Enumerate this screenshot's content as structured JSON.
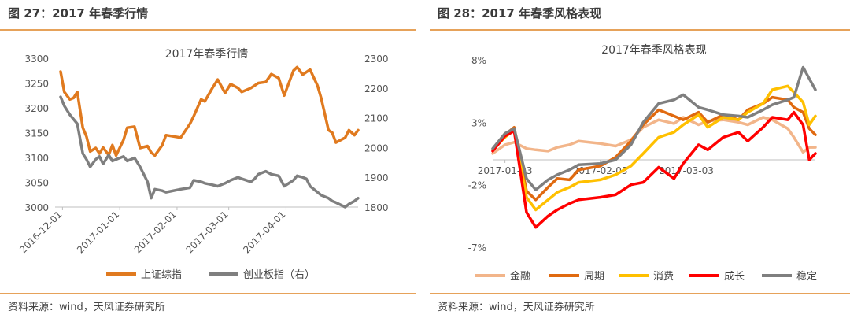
{
  "left_panel": {
    "figure_title": "图 27：2017 年春季行情",
    "source": "资料来源：wind，天风证券研究所",
    "chart_data": {
      "type": "line",
      "title": "2017年春季行情",
      "left_axis": {
        "ylim": [
          3000,
          3300
        ],
        "ticks": [
          "3300",
          "3250",
          "3200",
          "3150",
          "3100",
          "3050",
          "3000"
        ]
      },
      "right_axis": {
        "ylim": [
          1800,
          2300
        ],
        "ticks": [
          "2300",
          "2200",
          "2100",
          "2000",
          "1900",
          "1800"
        ]
      },
      "xlim": [
        "2016-11-27",
        "2017-05-10"
      ],
      "x_ticks": [
        "2016-12-01",
        "2017-01-01",
        "2017-02-01",
        "2017-03-01",
        "2017-04-01"
      ],
      "legend_position": "bottom",
      "series": [
        {
          "name": "上证综指",
          "axis": "left",
          "color": "#e07a1f",
          "x": [
            "2016-11-30",
            "2016-12-02",
            "2016-12-05",
            "2016-12-07",
            "2016-12-09",
            "2016-12-12",
            "2016-12-14",
            "2016-12-16",
            "2016-12-19",
            "2016-12-21",
            "2016-12-23",
            "2016-12-26",
            "2016-12-28",
            "2016-12-30",
            "2017-01-03",
            "2017-01-05",
            "2017-01-09",
            "2017-01-12",
            "2017-01-16",
            "2017-01-18",
            "2017-01-20",
            "2017-01-24",
            "2017-01-26",
            "2017-02-03",
            "2017-02-08",
            "2017-02-10",
            "2017-02-14",
            "2017-02-16",
            "2017-02-20",
            "2017-02-23",
            "2017-02-27",
            "2017-03-02",
            "2017-03-06",
            "2017-03-08",
            "2017-03-13",
            "2017-03-15",
            "2017-03-17",
            "2017-03-21",
            "2017-03-24",
            "2017-03-28",
            "2017-03-31",
            "2017-04-05",
            "2017-04-07",
            "2017-04-10",
            "2017-04-12",
            "2017-04-14",
            "2017-04-18",
            "2017-04-20",
            "2017-04-24",
            "2017-04-26",
            "2017-04-28",
            "2017-05-03",
            "2017-05-05",
            "2017-05-08",
            "2017-05-10"
          ],
          "values": [
            3273,
            3232,
            3217,
            3220,
            3232,
            3160,
            3142,
            3112,
            3119,
            3108,
            3120,
            3105,
            3125,
            3104,
            3135,
            3160,
            3162,
            3119,
            3123,
            3110,
            3104,
            3125,
            3145,
            3140,
            3168,
            3183,
            3217,
            3213,
            3239,
            3257,
            3230,
            3248,
            3240,
            3232,
            3240,
            3245,
            3250,
            3252,
            3268,
            3260,
            3225,
            3275,
            3282,
            3267,
            3272,
            3277,
            3245,
            3220,
            3155,
            3150,
            3130,
            3140,
            3155,
            3145,
            3155
          ]
        },
        {
          "name": "创业板指（右）",
          "axis": "right",
          "color": "#7f7f7f",
          "x": [
            "2016-11-30",
            "2016-12-02",
            "2016-12-05",
            "2016-12-07",
            "2016-12-09",
            "2016-12-12",
            "2016-12-14",
            "2016-12-16",
            "2016-12-19",
            "2016-12-21",
            "2016-12-23",
            "2016-12-26",
            "2016-12-28",
            "2016-12-30",
            "2017-01-03",
            "2017-01-05",
            "2017-01-09",
            "2017-01-12",
            "2017-01-16",
            "2017-01-18",
            "2017-01-20",
            "2017-01-24",
            "2017-01-26",
            "2017-02-03",
            "2017-02-08",
            "2017-02-10",
            "2017-02-14",
            "2017-02-16",
            "2017-02-20",
            "2017-02-23",
            "2017-02-27",
            "2017-03-02",
            "2017-03-06",
            "2017-03-08",
            "2017-03-13",
            "2017-03-15",
            "2017-03-17",
            "2017-03-21",
            "2017-03-24",
            "2017-03-28",
            "2017-03-31",
            "2017-04-05",
            "2017-04-07",
            "2017-04-10",
            "2017-04-12",
            "2017-04-14",
            "2017-04-18",
            "2017-04-20",
            "2017-04-24",
            "2017-04-26",
            "2017-04-28",
            "2017-05-03",
            "2017-05-05",
            "2017-05-08",
            "2017-05-10"
          ],
          "values": [
            2170,
            2140,
            2110,
            2095,
            2080,
            1980,
            1960,
            1935,
            1960,
            1970,
            1945,
            1975,
            1955,
            1960,
            1970,
            1955,
            1965,
            1935,
            1885,
            1830,
            1860,
            1855,
            1850,
            1860,
            1865,
            1890,
            1885,
            1880,
            1875,
            1870,
            1880,
            1890,
            1900,
            1895,
            1885,
            1895,
            1910,
            1920,
            1910,
            1905,
            1870,
            1890,
            1905,
            1900,
            1895,
            1870,
            1850,
            1840,
            1830,
            1820,
            1815,
            1800,
            1810,
            1820,
            1830
          ]
        }
      ]
    }
  },
  "right_panel": {
    "figure_title": "图 28：2017 年春季风格表现",
    "source": "资料来源：wind，天风证券研究所",
    "chart_data": {
      "type": "line",
      "title": "2017年春季风格表现",
      "ylim": [
        -8,
        8.5
      ],
      "y_ticks": [
        {
          "value": 8,
          "label": "8%"
        },
        {
          "value": 3,
          "label": "3%"
        },
        {
          "value": -2,
          "label": "-2%"
        },
        {
          "value": -7,
          "label": "-7%"
        }
      ],
      "xlim": [
        "2016-12-30",
        "2017-04-14"
      ],
      "x_ticks": [
        "2017-01-03",
        "2017-02-03",
        "2017-03-03"
      ],
      "legend_position": "bottom",
      "series": [
        {
          "name": "金融",
          "color": "#f2b58a",
          "x": [
            "2016-12-30",
            "2017-01-03",
            "2017-01-06",
            "2017-01-10",
            "2017-01-13",
            "2017-01-17",
            "2017-01-20",
            "2017-01-24",
            "2017-01-27",
            "2017-02-03",
            "2017-02-08",
            "2017-02-13",
            "2017-02-17",
            "2017-02-22",
            "2017-02-27",
            "2017-03-02",
            "2017-03-07",
            "2017-03-10",
            "2017-03-15",
            "2017-03-20",
            "2017-03-23",
            "2017-03-28",
            "2017-03-31",
            "2017-04-05",
            "2017-04-07",
            "2017-04-10",
            "2017-04-12",
            "2017-04-14"
          ],
          "values": [
            0.5,
            1.2,
            1.4,
            0.9,
            0.8,
            0.7,
            1.0,
            1.2,
            1.5,
            1.3,
            1.1,
            1.6,
            2.6,
            3.2,
            2.9,
            3.4,
            2.8,
            3.1,
            3.2,
            3.0,
            2.8,
            3.4,
            3.2,
            2.5,
            1.8,
            0.6,
            1.0,
            1.0
          ]
        },
        {
          "name": "周期",
          "color": "#e06a10",
          "x": [
            "2016-12-30",
            "2017-01-03",
            "2017-01-06",
            "2017-01-10",
            "2017-01-13",
            "2017-01-17",
            "2017-01-20",
            "2017-01-24",
            "2017-01-27",
            "2017-02-03",
            "2017-02-08",
            "2017-02-13",
            "2017-02-17",
            "2017-02-22",
            "2017-02-27",
            "2017-03-02",
            "2017-03-07",
            "2017-03-10",
            "2017-03-15",
            "2017-03-20",
            "2017-03-23",
            "2017-03-28",
            "2017-03-31",
            "2017-04-05",
            "2017-04-07",
            "2017-04-10",
            "2017-04-12",
            "2017-04-14"
          ],
          "values": [
            0.8,
            2.0,
            2.6,
            -2.5,
            -3.2,
            -2.2,
            -1.5,
            -1.6,
            -0.8,
            -0.5,
            0.2,
            1.5,
            2.8,
            4.0,
            3.5,
            3.2,
            3.8,
            3.0,
            3.6,
            3.2,
            4.0,
            4.5,
            5.0,
            4.8,
            4.2,
            3.8,
            2.5,
            2.0
          ]
        },
        {
          "name": "消费",
          "color": "#ffc000",
          "x": [
            "2016-12-30",
            "2017-01-03",
            "2017-01-06",
            "2017-01-10",
            "2017-01-13",
            "2017-01-17",
            "2017-01-20",
            "2017-01-24",
            "2017-01-27",
            "2017-02-03",
            "2017-02-08",
            "2017-02-13",
            "2017-02-17",
            "2017-02-22",
            "2017-02-27",
            "2017-03-02",
            "2017-03-07",
            "2017-03-10",
            "2017-03-15",
            "2017-03-20",
            "2017-03-23",
            "2017-03-28",
            "2017-03-31",
            "2017-04-05",
            "2017-04-07",
            "2017-04-10",
            "2017-04-12",
            "2017-04-14"
          ],
          "values": [
            0.8,
            1.8,
            2.4,
            -3.0,
            -4.0,
            -3.2,
            -2.6,
            -2.2,
            -1.8,
            -1.6,
            -1.2,
            -0.5,
            0.5,
            1.8,
            2.2,
            2.8,
            3.6,
            2.6,
            3.4,
            3.2,
            3.8,
            4.5,
            5.6,
            5.9,
            5.4,
            4.6,
            2.8,
            3.5
          ]
        },
        {
          "name": "成长",
          "color": "#ff0000",
          "x": [
            "2016-12-30",
            "2017-01-03",
            "2017-01-06",
            "2017-01-10",
            "2017-01-13",
            "2017-01-17",
            "2017-01-20",
            "2017-01-24",
            "2017-01-27",
            "2017-02-03",
            "2017-02-08",
            "2017-02-13",
            "2017-02-17",
            "2017-02-22",
            "2017-02-27",
            "2017-03-02",
            "2017-03-07",
            "2017-03-10",
            "2017-03-15",
            "2017-03-20",
            "2017-03-23",
            "2017-03-28",
            "2017-03-31",
            "2017-04-05",
            "2017-04-07",
            "2017-04-10",
            "2017-04-12",
            "2017-04-14"
          ],
          "values": [
            0.7,
            1.9,
            2.3,
            -4.2,
            -5.4,
            -4.5,
            -4.0,
            -3.5,
            -3.2,
            -3.0,
            -2.8,
            -2.0,
            -1.8,
            -0.6,
            -1.5,
            -0.3,
            1.2,
            0.8,
            1.8,
            2.2,
            1.5,
            2.6,
            3.4,
            3.2,
            3.8,
            2.8,
            0.0,
            0.5
          ]
        },
        {
          "name": "稳定",
          "color": "#7f7f7f",
          "x": [
            "2016-12-30",
            "2017-01-03",
            "2017-01-06",
            "2017-01-10",
            "2017-01-13",
            "2017-01-17",
            "2017-01-20",
            "2017-01-24",
            "2017-01-27",
            "2017-02-03",
            "2017-02-08",
            "2017-02-13",
            "2017-02-17",
            "2017-02-22",
            "2017-02-27",
            "2017-03-02",
            "2017-03-07",
            "2017-03-10",
            "2017-03-15",
            "2017-03-20",
            "2017-03-23",
            "2017-03-28",
            "2017-03-31",
            "2017-04-05",
            "2017-04-07",
            "2017-04-10",
            "2017-04-12",
            "2017-04-14"
          ],
          "values": [
            0.9,
            2.1,
            2.5,
            -1.5,
            -2.4,
            -1.6,
            -1.2,
            -0.8,
            -0.4,
            -0.3,
            0.0,
            1.2,
            3.0,
            4.5,
            4.8,
            5.2,
            4.2,
            4.0,
            3.6,
            3.5,
            3.4,
            4.0,
            4.4,
            4.8,
            5.0,
            7.4,
            6.5,
            5.6
          ]
        }
      ]
    }
  }
}
